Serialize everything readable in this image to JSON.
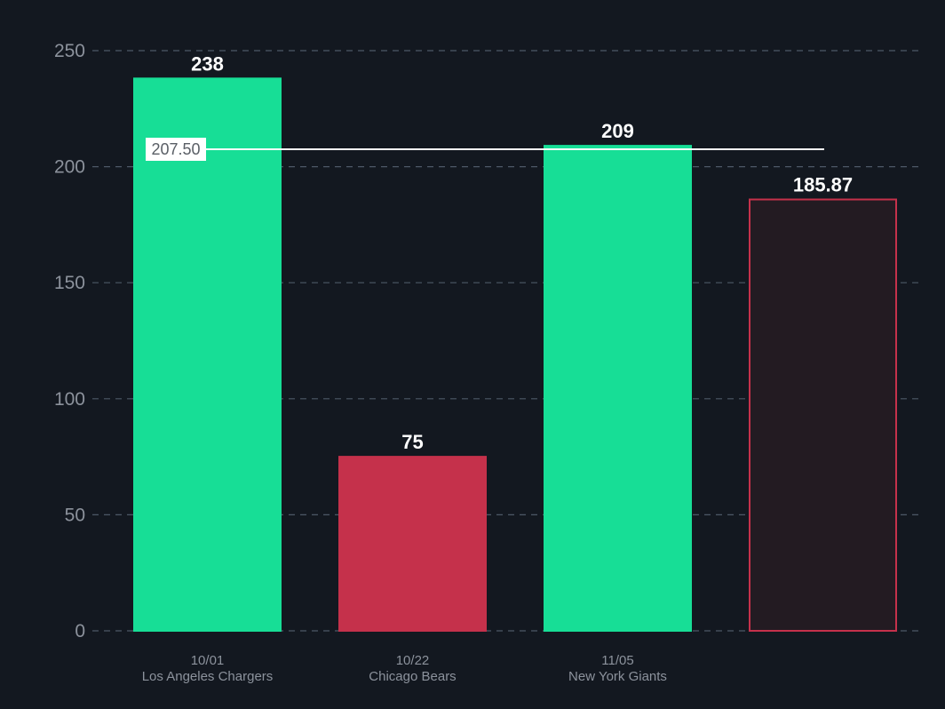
{
  "chart_data": {
    "type": "bar",
    "categories": [
      {
        "date": "10/01",
        "team": "Los Angeles Chargers"
      },
      {
        "date": "10/22",
        "team": "Chicago Bears"
      },
      {
        "date": "11/05",
        "team": "New York Giants"
      },
      {
        "date": "",
        "team": ""
      }
    ],
    "values": [
      238,
      75,
      209,
      185.87
    ],
    "value_labels": [
      "238",
      "75",
      "209",
      "185.87"
    ],
    "bar_styles": [
      "filled-green",
      "filled-red",
      "filled-green",
      "outlined-red"
    ],
    "reference_line": {
      "value": 207.5,
      "label": "207.50"
    },
    "ylim": [
      0,
      250
    ],
    "yticks": [
      0,
      50,
      100,
      150,
      200,
      250
    ],
    "grid": true,
    "title": "",
    "xlabel": "",
    "ylabel": ""
  },
  "colors": {
    "background": "#131820",
    "green": "#17de96",
    "red": "#c5314b",
    "outlined_fill": "#231b22",
    "grid": "#4d5866",
    "reference_line": "#ffffff"
  }
}
